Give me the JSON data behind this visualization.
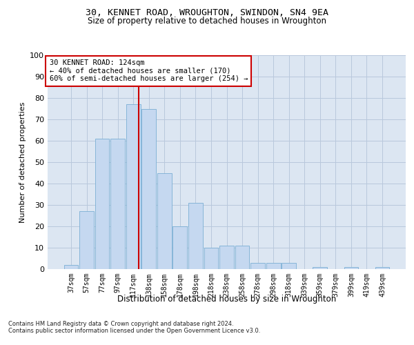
{
  "title1": "30, KENNET ROAD, WROUGHTON, SWINDON, SN4 9EA",
  "title2": "Size of property relative to detached houses in Wroughton",
  "xlabel": "Distribution of detached houses by size in Wroughton",
  "ylabel": "Number of detached properties",
  "categories": [
    "37sqm",
    "57sqm",
    "77sqm",
    "97sqm",
    "117sqm",
    "138sqm",
    "158sqm",
    "178sqm",
    "198sqm",
    "218sqm",
    "238sqm",
    "258sqm",
    "278sqm",
    "298sqm",
    "318sqm",
    "339sqm",
    "359sqm",
    "379sqm",
    "399sqm",
    "419sqm",
    "439sqm"
  ],
  "values": [
    2,
    27,
    61,
    61,
    77,
    75,
    45,
    20,
    31,
    10,
    11,
    11,
    3,
    3,
    3,
    0,
    1,
    0,
    1,
    0,
    1
  ],
  "bar_color": "#c5d8f0",
  "bar_edge_color": "#7aafd4",
  "grid_color": "#b8c8dc",
  "background_color": "#dce6f2",
  "annotation_line1": "30 KENNET ROAD: 124sqm",
  "annotation_line2": "← 40% of detached houses are smaller (170)",
  "annotation_line3": "60% of semi-detached houses are larger (254) →",
  "annotation_box_color": "#ffffff",
  "annotation_box_edge_color": "#cc0000",
  "vline_color": "#cc0000",
  "footer1": "Contains HM Land Registry data © Crown copyright and database right 2024.",
  "footer2": "Contains public sector information licensed under the Open Government Licence v3.0.",
  "ylim": [
    0,
    100
  ],
  "yticks": [
    0,
    10,
    20,
    30,
    40,
    50,
    60,
    70,
    80,
    90,
    100
  ]
}
